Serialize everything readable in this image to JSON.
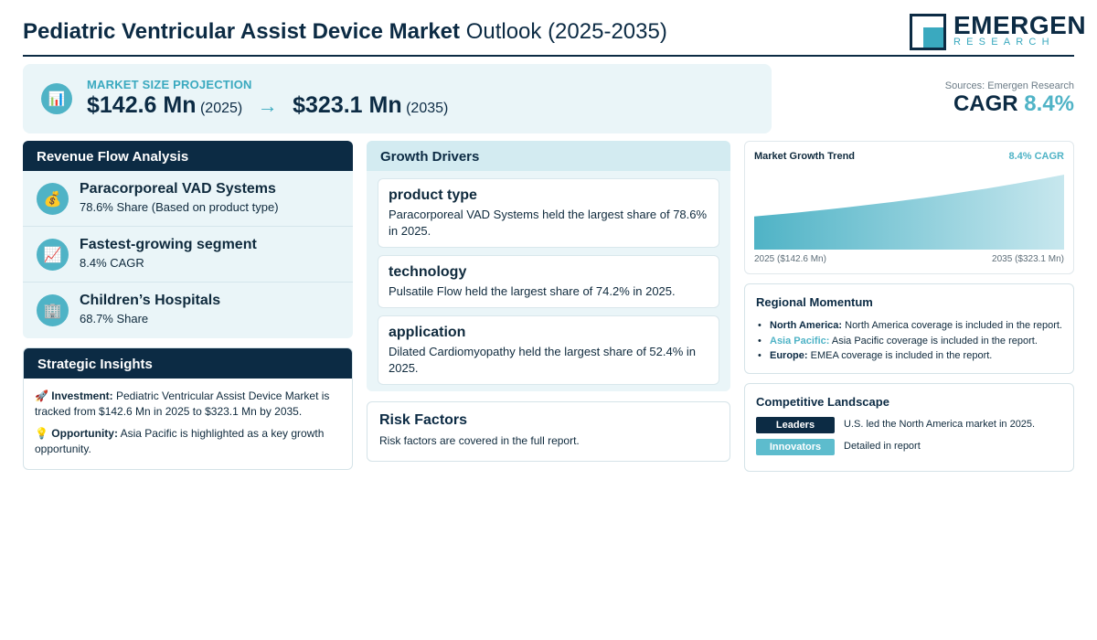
{
  "header": {
    "title_bold": "Pediatric Ventricular Assist Device Market",
    "title_rest": "Outlook (2025-2035)",
    "logo_word": "EMERGEN",
    "logo_sub": "RESEARCH"
  },
  "banner": {
    "icon": "bar-chart-icon",
    "label": "MARKET SIZE PROJECTION",
    "start_value": "$142.6 Mn",
    "start_year": "(2025)",
    "arrow": "→",
    "end_value": "$323.1 Mn",
    "end_year": "(2035)"
  },
  "sources": "Sources: Emergen Research",
  "cagr": {
    "label": "CAGR",
    "value": "8.4%"
  },
  "revenue_flow": {
    "title": "Revenue Flow Analysis",
    "items": [
      {
        "icon": "money-bag-icon",
        "glyph": "💰",
        "title": "Paracorporeal VAD Systems",
        "sub": "78.6% Share (Based on product type)"
      },
      {
        "icon": "trend-up-icon",
        "glyph": "📈",
        "title": "Fastest-growing segment",
        "sub": "8.4% CAGR"
      },
      {
        "icon": "hospital-icon",
        "glyph": "🏢",
        "title": "Children’s Hospitals",
        "sub": "68.7% Share"
      }
    ]
  },
  "strategic": {
    "title": "Strategic Insights",
    "investment_icon": "🚀",
    "investment_label": "Investment:",
    "investment_text": "Pediatric Ventricular Assist Device Market is tracked from $142.6 Mn in 2025 to $323.1 Mn by 2035.",
    "opportunity_icon": "💡",
    "opportunity_label": "Opportunity:",
    "opportunity_text": "Asia Pacific is highlighted as a key growth opportunity."
  },
  "drivers": {
    "title": "Growth Drivers",
    "items": [
      {
        "title": "product type",
        "text": "Paracorporeal VAD Systems held the largest share of 78.6% in 2025."
      },
      {
        "title": "technology",
        "text": "Pulsatile Flow held the largest share of 74.2% in 2025."
      },
      {
        "title": "application",
        "text": "Dilated Cardiomyopathy held the largest share of 52.4% in 2025."
      }
    ]
  },
  "risk": {
    "title": "Risk Factors",
    "text": "Risk factors are covered in the full report."
  },
  "trend": {
    "title": "Market Growth Trend",
    "cagr_label": "8.4% CAGR",
    "start_label": "2025 ($142.6 Mn)",
    "end_label": "2035 ($323.1 Mn)"
  },
  "chart_data": {
    "type": "area",
    "title": "Market Growth Trend",
    "x": [
      2025,
      2035
    ],
    "series": [
      {
        "values": [
          142.6,
          323.1
        ]
      }
    ]
  },
  "regional": {
    "title": "Regional Momentum",
    "items": [
      {
        "region": "North America:",
        "text": "North America coverage is included in the report.",
        "accent": false
      },
      {
        "region": "Asia Pacific:",
        "text": "Asia Pacific coverage is included in the report.",
        "accent": true
      },
      {
        "region": "Europe:",
        "text": "EMEA coverage is included in the report.",
        "accent": false
      }
    ]
  },
  "competitive": {
    "title": "Competitive Landscape",
    "rows": [
      {
        "tag": "Leaders",
        "text": "U.S. led the North America market in 2025."
      },
      {
        "tag": "Innovators",
        "text": "Detailed in report"
      }
    ]
  },
  "colors": {
    "navy": "#0c2b44",
    "accent": "#4fb3c6",
    "panel": "#eaf5f8"
  }
}
